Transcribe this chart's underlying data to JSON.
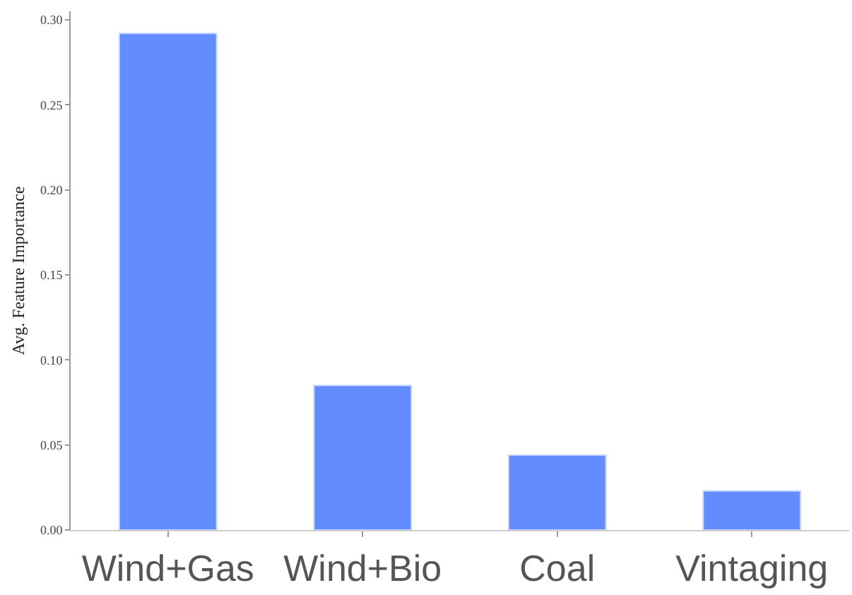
{
  "chart_data": {
    "type": "bar",
    "ylabel": "Avg. Feature Importance",
    "categories": [
      "Wind+Gas",
      "Wind+Bio",
      "Coal",
      "Vintaging"
    ],
    "values": [
      0.292,
      0.085,
      0.044,
      0.023
    ],
    "color": "#638dff",
    "ylim": [
      0,
      0.305
    ],
    "yticks": [
      {
        "value": 0,
        "label": "0.00"
      },
      {
        "value": 0.05,
        "label": "0.05"
      },
      {
        "value": 0.1,
        "label": "0.10"
      },
      {
        "value": 0.15,
        "label": "0.15"
      },
      {
        "value": 0.2,
        "label": "0.20"
      },
      {
        "value": 0.25,
        "label": "0.25"
      },
      {
        "value": 0.3,
        "label": "0.30"
      }
    ]
  }
}
